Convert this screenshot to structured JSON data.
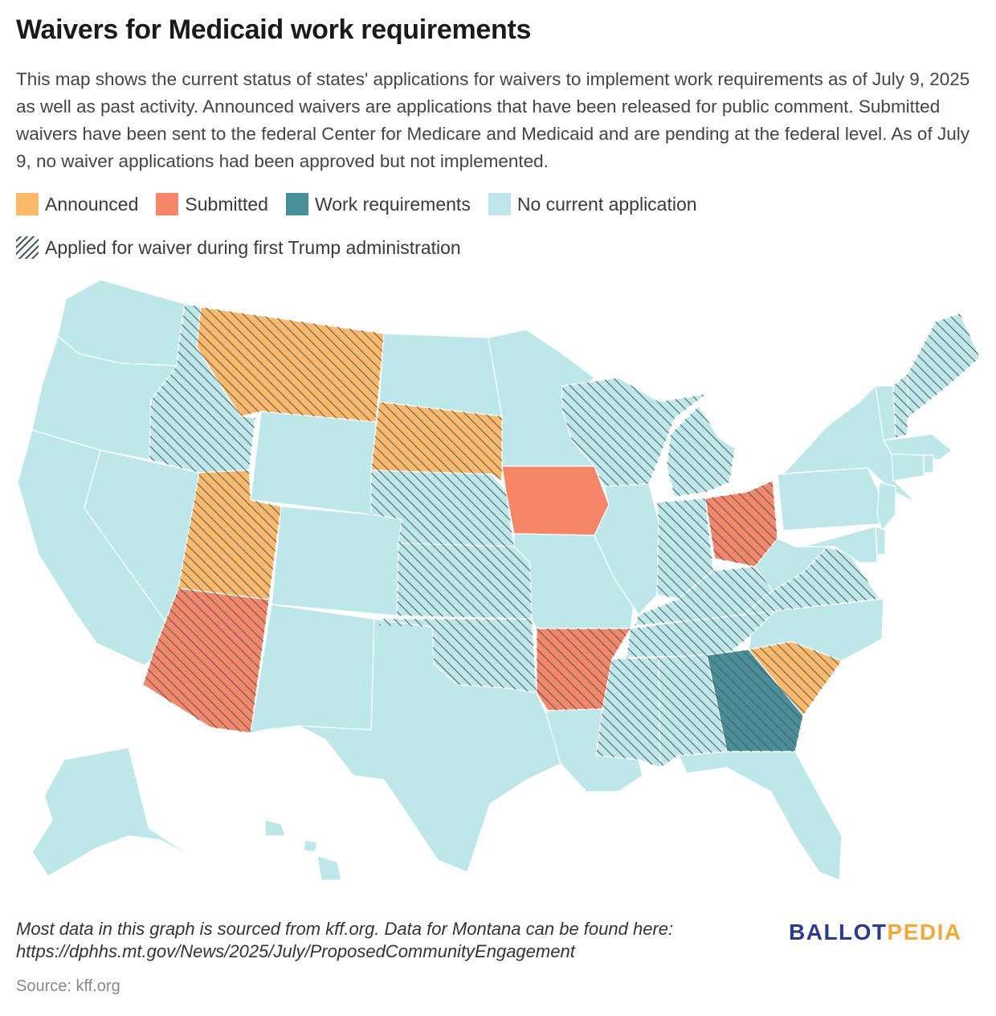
{
  "title": "Waivers for Medicaid work requirements",
  "description": "This map shows the current status of states' applications for waivers to implement work requirements as of July 9, 2025 as well as past activity. Announced waivers are applications that have been released for public comment. Submitted waivers have been sent to the federal Center for Medicare and Medicaid and are pending at the federal level. As of July 9, no waiver applications had been approved but not implemented.",
  "legend": {
    "announced": "Announced",
    "submitted": "Submitted",
    "work": "Work requirements",
    "none": "No current application",
    "hatch": "Applied for waiver during first Trump administration"
  },
  "colors": {
    "announced": "#fdb96b",
    "submitted": "#f5866a",
    "work": "#4a8f98",
    "none": "#bee7ea",
    "hatch": "#4a5a60"
  },
  "states": [
    {
      "id": "WA",
      "status": "none",
      "first_trump": false
    },
    {
      "id": "OR",
      "status": "none",
      "first_trump": false
    },
    {
      "id": "CA",
      "status": "none",
      "first_trump": false
    },
    {
      "id": "NV",
      "status": "none",
      "first_trump": false
    },
    {
      "id": "ID",
      "status": "none",
      "first_trump": true
    },
    {
      "id": "MT",
      "status": "announced",
      "first_trump": true
    },
    {
      "id": "WY",
      "status": "none",
      "first_trump": false
    },
    {
      "id": "UT",
      "status": "announced",
      "first_trump": true
    },
    {
      "id": "AZ",
      "status": "submitted",
      "first_trump": true
    },
    {
      "id": "CO",
      "status": "none",
      "first_trump": false
    },
    {
      "id": "NM",
      "status": "none",
      "first_trump": false
    },
    {
      "id": "ND",
      "status": "none",
      "first_trump": false
    },
    {
      "id": "SD",
      "status": "announced",
      "first_trump": true
    },
    {
      "id": "NE",
      "status": "none",
      "first_trump": true
    },
    {
      "id": "KS",
      "status": "none",
      "first_trump": true
    },
    {
      "id": "OK",
      "status": "none",
      "first_trump": true
    },
    {
      "id": "TX",
      "status": "none",
      "first_trump": false
    },
    {
      "id": "MN",
      "status": "none",
      "first_trump": false
    },
    {
      "id": "IA",
      "status": "submitted",
      "first_trump": false
    },
    {
      "id": "MO",
      "status": "none",
      "first_trump": false
    },
    {
      "id": "AR",
      "status": "submitted",
      "first_trump": true
    },
    {
      "id": "LA",
      "status": "none",
      "first_trump": false
    },
    {
      "id": "WI",
      "status": "none",
      "first_trump": true
    },
    {
      "id": "IL",
      "status": "none",
      "first_trump": false
    },
    {
      "id": "MI",
      "status": "none",
      "first_trump": true
    },
    {
      "id": "IN",
      "status": "none",
      "first_trump": true
    },
    {
      "id": "OH",
      "status": "submitted",
      "first_trump": true
    },
    {
      "id": "KY",
      "status": "none",
      "first_trump": true
    },
    {
      "id": "TN",
      "status": "none",
      "first_trump": true
    },
    {
      "id": "MS",
      "status": "none",
      "first_trump": true
    },
    {
      "id": "AL",
      "status": "none",
      "first_trump": true
    },
    {
      "id": "GA",
      "status": "work",
      "first_trump": true
    },
    {
      "id": "FL",
      "status": "none",
      "first_trump": false
    },
    {
      "id": "SC",
      "status": "announced",
      "first_trump": true
    },
    {
      "id": "NC",
      "status": "none",
      "first_trump": false
    },
    {
      "id": "VA",
      "status": "none",
      "first_trump": true
    },
    {
      "id": "WV",
      "status": "none",
      "first_trump": false
    },
    {
      "id": "PA",
      "status": "none",
      "first_trump": false
    },
    {
      "id": "NY",
      "status": "none",
      "first_trump": false
    },
    {
      "id": "ME",
      "status": "none",
      "first_trump": true
    },
    {
      "id": "NH",
      "status": "none",
      "first_trump": true
    },
    {
      "id": "VT",
      "status": "none",
      "first_trump": false
    },
    {
      "id": "MA",
      "status": "none",
      "first_trump": false
    },
    {
      "id": "RI",
      "status": "none",
      "first_trump": false
    },
    {
      "id": "CT",
      "status": "none",
      "first_trump": false
    },
    {
      "id": "NJ",
      "status": "none",
      "first_trump": false
    },
    {
      "id": "DE",
      "status": "none",
      "first_trump": false
    },
    {
      "id": "MD",
      "status": "none",
      "first_trump": false
    },
    {
      "id": "AK",
      "status": "none",
      "first_trump": false
    },
    {
      "id": "HI",
      "status": "none",
      "first_trump": false
    }
  ],
  "footnote": "Most data in this graph is sourced from kff.org. Data for Montana can be found here: https://dphhs.mt.gov/News/2025/July/ProposedCommunityEngagement",
  "brand": {
    "part1": "BALLOT",
    "part2": "PEDIA"
  },
  "source": "Source: kff.org"
}
